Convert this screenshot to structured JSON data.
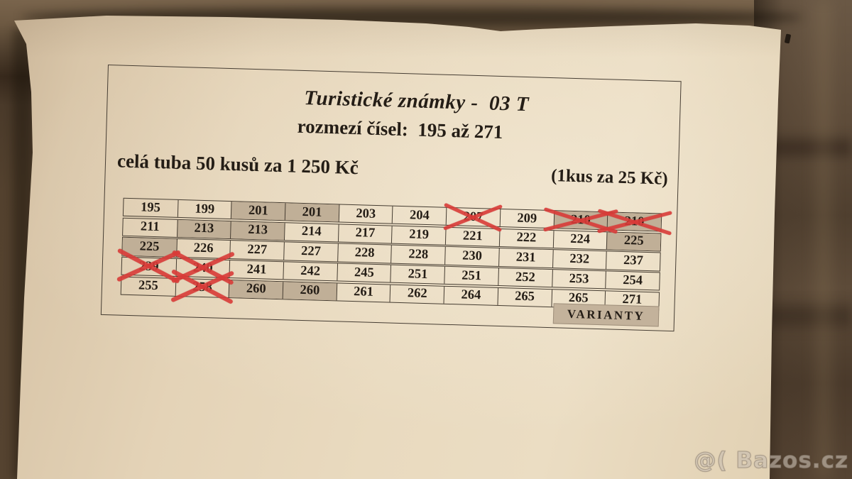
{
  "photo": {
    "watermark": "@( Bazos.cz"
  },
  "document": {
    "title": "Turistické známky -  03 T",
    "subtitle": "rozmezí čísel:  195 až 271",
    "tube_price": "celá tuba 50 kusů za 1 250 Kč",
    "unit_price": "(1kus za 25 Kč)",
    "varianty_label": "VARIANTY",
    "table": {
      "rows": [
        [
          {
            "v": "195"
          },
          {
            "v": "199"
          },
          {
            "v": "201",
            "shaded": true
          },
          {
            "v": "201",
            "shaded": true
          },
          {
            "v": "203"
          },
          {
            "v": "204"
          },
          {
            "v": "207",
            "crossed": true
          },
          {
            "v": "209"
          },
          {
            "v": "210",
            "shaded": true,
            "crossed": true
          },
          {
            "v": "210",
            "shaded": true,
            "crossed": true
          }
        ],
        [
          {
            "v": "211"
          },
          {
            "v": "213",
            "shaded": true
          },
          {
            "v": "213",
            "shaded": true
          },
          {
            "v": "214"
          },
          {
            "v": "217"
          },
          {
            "v": "219"
          },
          {
            "v": "221"
          },
          {
            "v": "222"
          },
          {
            "v": "224"
          },
          {
            "v": "225",
            "shaded": true
          }
        ],
        [
          {
            "v": "225",
            "shaded": true
          },
          {
            "v": "226"
          },
          {
            "v": "227"
          },
          {
            "v": "227"
          },
          {
            "v": "228"
          },
          {
            "v": "228"
          },
          {
            "v": "230"
          },
          {
            "v": "231"
          },
          {
            "v": "232"
          },
          {
            "v": "237"
          }
        ],
        [
          {
            "v": "239",
            "crossed": true
          },
          {
            "v": "240",
            "crossed": true
          },
          {
            "v": "241"
          },
          {
            "v": "242"
          },
          {
            "v": "245"
          },
          {
            "v": "251"
          },
          {
            "v": "251"
          },
          {
            "v": "252"
          },
          {
            "v": "253"
          },
          {
            "v": "254"
          }
        ],
        [
          {
            "v": "255"
          },
          {
            "v": "258",
            "crossed": true
          },
          {
            "v": "260",
            "shaded": true
          },
          {
            "v": "260",
            "shaded": true
          },
          {
            "v": "261"
          },
          {
            "v": "262"
          },
          {
            "v": "264"
          },
          {
            "v": "265"
          },
          {
            "v": "265"
          },
          {
            "v": "271"
          }
        ]
      ]
    }
  },
  "colors": {
    "ink": "#241d16",
    "shaded_cell": "#c0af97",
    "cross_red": "#d93b38",
    "varianty_bg": "#c3b29b",
    "paper": "#e7d8bd",
    "fabric": "#55432f"
  }
}
